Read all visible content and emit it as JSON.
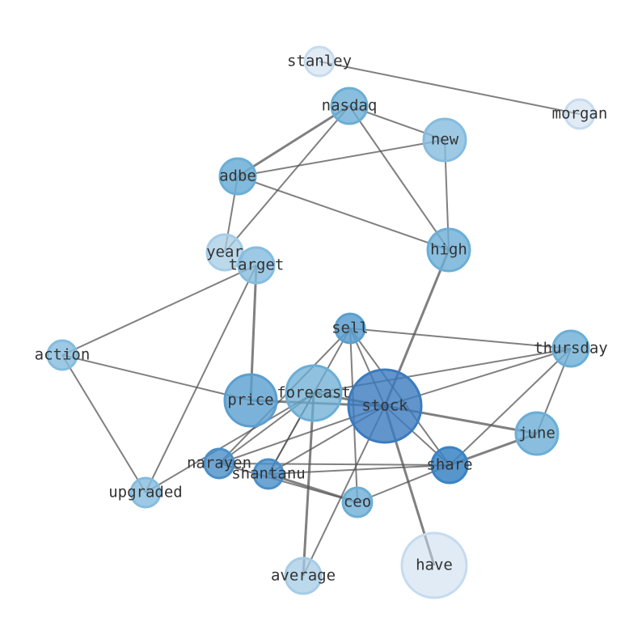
{
  "nodes": [
    {
      "label": "stanley"
    },
    {
      "label": "morgan"
    },
    {
      "label": "nasdaq"
    },
    {
      "label": "new"
    },
    {
      "label": "adbe"
    },
    {
      "label": "year"
    },
    {
      "label": "target"
    },
    {
      "label": "high"
    },
    {
      "label": "sell"
    },
    {
      "label": "action"
    },
    {
      "label": "thursday"
    },
    {
      "label": "price"
    },
    {
      "label": "forecast"
    },
    {
      "label": "stock"
    },
    {
      "label": "june"
    },
    {
      "label": "narayen"
    },
    {
      "label": "shantanu"
    },
    {
      "label": "share"
    },
    {
      "label": "ceo"
    },
    {
      "label": "upgraded"
    },
    {
      "label": "average"
    },
    {
      "label": "have"
    }
  ]
}
